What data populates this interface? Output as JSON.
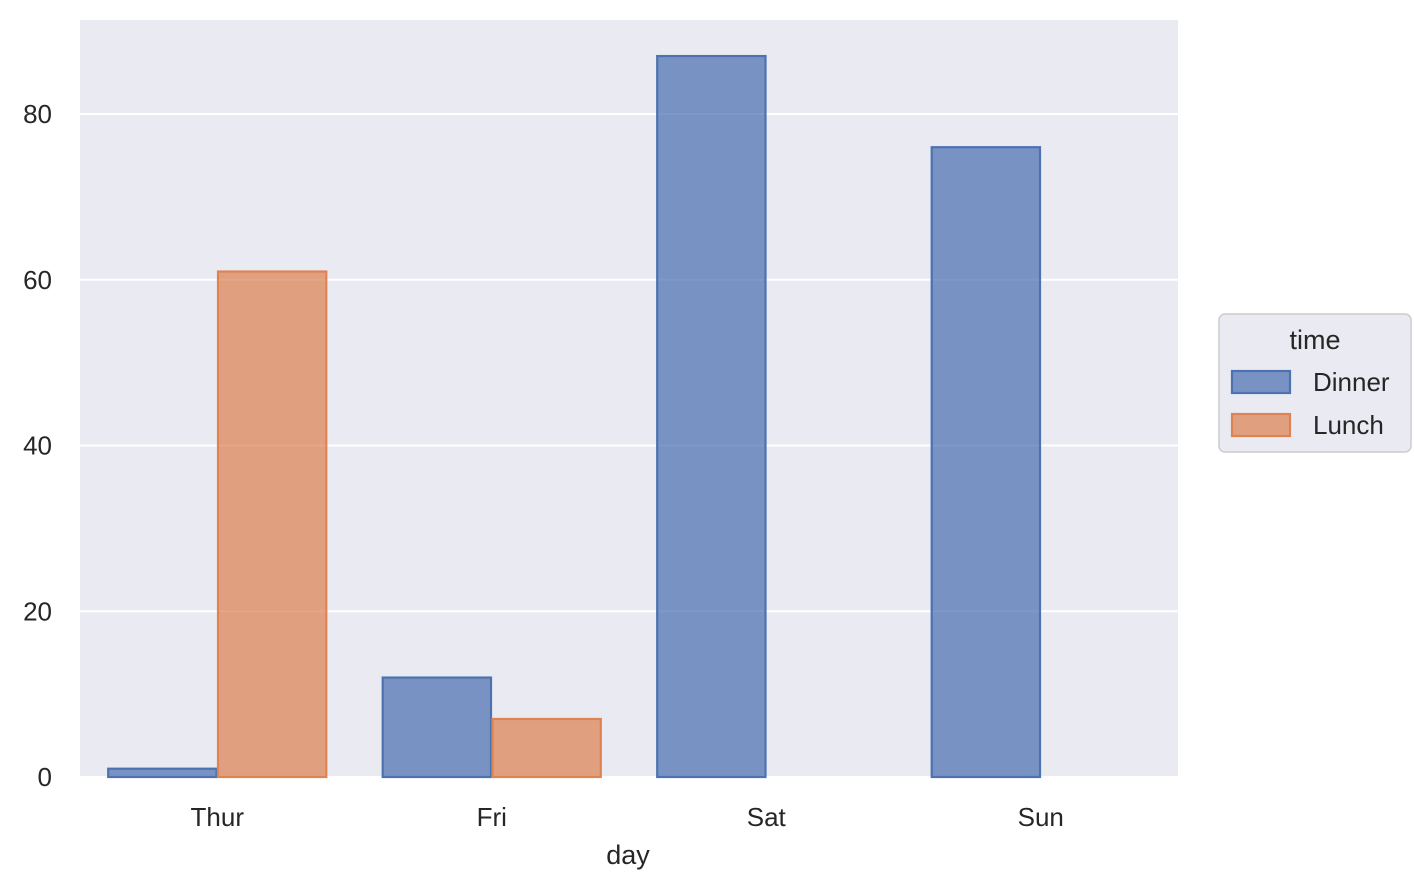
{
  "chart_data": {
    "type": "bar",
    "categories": [
      "Thur",
      "Fri",
      "Sat",
      "Sun"
    ],
    "series": [
      {
        "name": "Dinner",
        "values": [
          1,
          12,
          87,
          76
        ],
        "color": "#4c72b0"
      },
      {
        "name": "Lunch",
        "values": [
          61,
          7,
          0,
          0
        ],
        "color": "#dd8452"
      }
    ],
    "xlabel": "day",
    "ylabel": "",
    "ylim": [
      0,
      91.35
    ],
    "yticks": [
      0,
      20,
      40,
      60,
      80
    ],
    "ytick_labels": [
      "0",
      "20",
      "40",
      "60",
      "80"
    ],
    "legend": {
      "title": "time",
      "placement": "right",
      "entries": [
        "Dinner",
        "Lunch"
      ]
    },
    "grid": true,
    "background_color": "#eaeaf2",
    "grid_color": "#ffffff"
  }
}
